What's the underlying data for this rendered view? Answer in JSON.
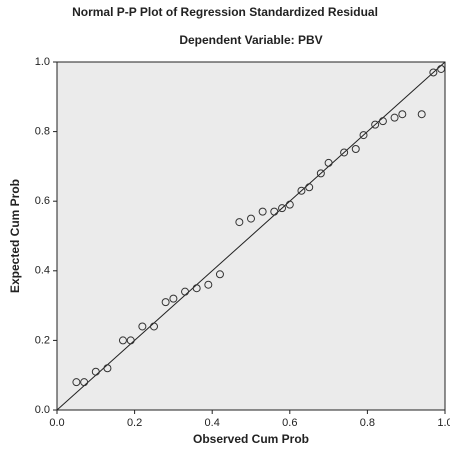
{
  "chart_data": {
    "type": "scatter",
    "title": "Normal P-P Plot of Regression Standardized Residual",
    "subtitle": "Dependent Variable: PBV",
    "x_label": "Observed Cum Prob",
    "y_label": "Expected Cum Prob",
    "x": [
      0.05,
      0.07,
      0.1,
      0.13,
      0.17,
      0.19,
      0.22,
      0.25,
      0.28,
      0.3,
      0.33,
      0.36,
      0.39,
      0.42,
      0.47,
      0.5,
      0.53,
      0.56,
      0.58,
      0.6,
      0.63,
      0.65,
      0.68,
      0.7,
      0.74,
      0.77,
      0.79,
      0.82,
      0.84,
      0.87,
      0.89,
      0.94,
      0.97,
      0.99
    ],
    "values": [
      0.08,
      0.08,
      0.11,
      0.12,
      0.2,
      0.2,
      0.24,
      0.24,
      0.31,
      0.32,
      0.34,
      0.35,
      0.36,
      0.39,
      0.54,
      0.55,
      0.57,
      0.57,
      0.58,
      0.59,
      0.63,
      0.64,
      0.68,
      0.71,
      0.74,
      0.75,
      0.79,
      0.82,
      0.83,
      0.84,
      0.85,
      0.85,
      0.97,
      0.98
    ],
    "color": "#333333",
    "xlim": [
      0,
      1
    ],
    "ylim": [
      0,
      1
    ],
    "xticks": [
      {
        "value": 0,
        "label": "0.0"
      },
      0.2,
      0.4,
      0.6,
      0.8,
      {
        "value": 1,
        "label": "1.0"
      }
    ],
    "yticks": [
      {
        "value": 0,
        "label": "0.0"
      },
      0.2,
      0.4,
      0.6,
      0.8,
      {
        "value": 1,
        "label": "1.0"
      }
    ]
  }
}
